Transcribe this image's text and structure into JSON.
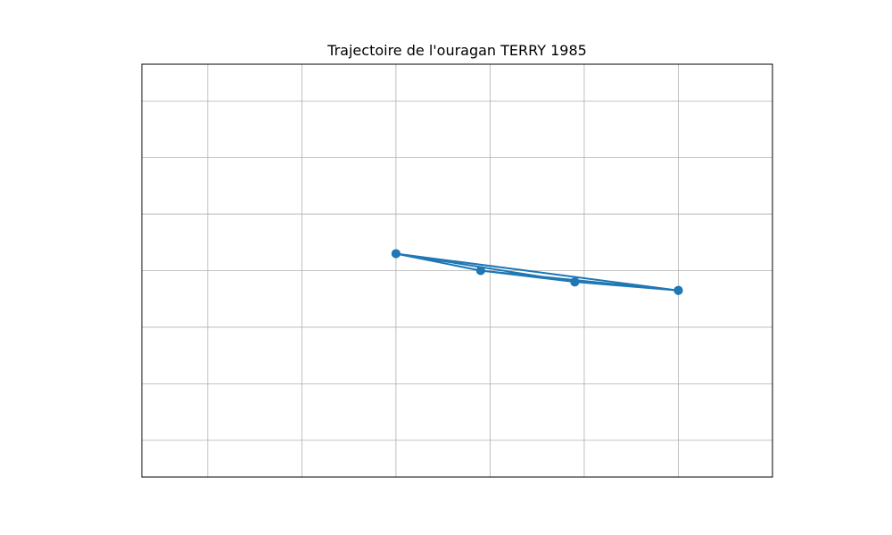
{
  "chart_data": {
    "type": "line",
    "title": "Trajectoire de l'ouragan TERRY 1985",
    "xlabel": "",
    "ylabel": "",
    "x_ticks": [
      -147,
      -146,
      -145,
      -144,
      -143,
      -142
    ],
    "y_ticks": [
      23,
      24,
      25,
      26,
      27,
      28,
      29
    ],
    "xlim": [
      -147.7,
      -141.0
    ],
    "ylim": [
      22.35,
      29.65
    ],
    "grid": true,
    "series": [
      {
        "name": "",
        "color": "#1f77b4",
        "marker": "circle",
        "points": [
          {
            "x": -145.0,
            "y": 26.3
          },
          {
            "x": -143.1,
            "y": 25.8
          },
          {
            "x": -142.0,
            "y": 25.65
          },
          {
            "x": -143.1,
            "y": 25.8
          },
          {
            "x": -144.1,
            "y": 26.0
          },
          {
            "x": -145.0,
            "y": 26.3
          },
          {
            "x": -142.0,
            "y": 25.65
          },
          {
            "x": -144.1,
            "y": 26.0
          },
          {
            "x": -143.1,
            "y": 25.8
          },
          {
            "x": -142.0,
            "y": 25.65
          }
        ]
      }
    ]
  }
}
